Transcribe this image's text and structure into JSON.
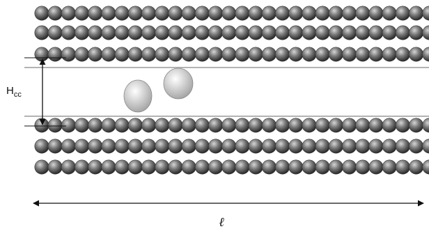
{
  "labels": {
    "height": "H",
    "height_subscript": "cc",
    "length": "ℓ"
  },
  "structure": {
    "top_block_rows": 3,
    "bottom_block_rows": 3,
    "spheres_per_row": 32,
    "mobile_particles": 2
  },
  "colors": {
    "sphere_light": "#d6d6d6",
    "sphere_mid": "#7a7a7a",
    "sphere_dark": "#222222",
    "particle_light": "#ffffff",
    "particle_dark": "#9a9a9a",
    "plane_line": "#9a9a9a",
    "arrow": "#111111"
  }
}
